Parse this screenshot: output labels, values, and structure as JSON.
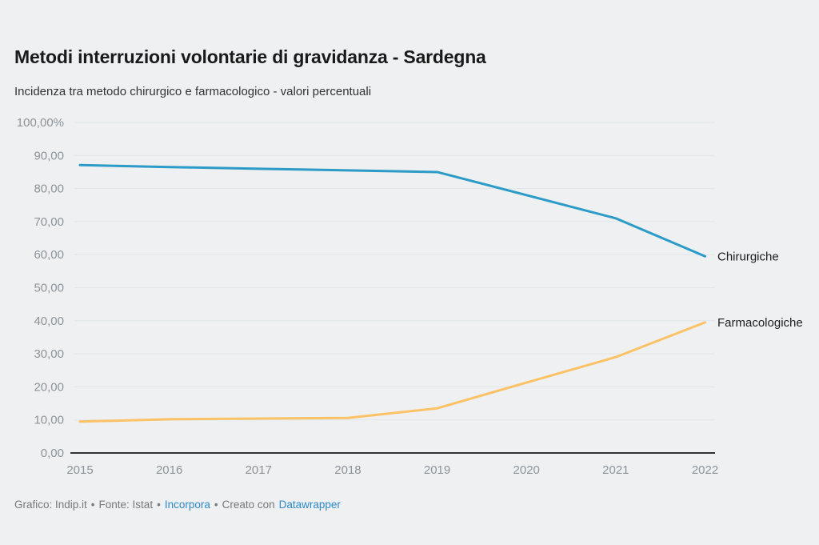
{
  "header": {
    "title": "Metodi interruzioni volontarie di gravidanza - Sardegna",
    "subtitle": "Incidenza tra metodo chirurgico e farmacologico - valori percentuali"
  },
  "footer": {
    "byline": "Grafico: Indip.it",
    "separator": "•",
    "source": "Fonte: Istat",
    "embed_link": "Incorpora",
    "created_with": "Creato con",
    "tool_link": "Datawrapper"
  },
  "colors": {
    "background": "#eef0f1",
    "title_text": "#1a1a1a",
    "subtitle_text": "#333333",
    "axis_text": "#8d9398",
    "gridline": "#e2e6e7",
    "baseline": "#303436",
    "series_label_text": "#1c1c1c",
    "footer_text": "#75797c",
    "link": "#2e8ac8",
    "chirurgiche": "#2d9bc7",
    "farmacologiche": "#fcc266"
  },
  "chart_data": {
    "type": "line",
    "title": "Metodi interruzioni volontarie di gravidanza - Sardegna",
    "subtitle": "Incidenza tra metodo chirurgico e farmacologico - valori percentuali",
    "xlabel": "",
    "ylabel": "",
    "ylim": [
      0,
      100
    ],
    "grid": true,
    "legend_position": "end-of-line-labels",
    "x": [
      2015,
      2016,
      2017,
      2018,
      2019,
      2020,
      2021,
      2022
    ],
    "x_labels": [
      "2015",
      "2016",
      "2017",
      "2018",
      "2019",
      "2020",
      "2021",
      "2022"
    ],
    "yticks": [
      {
        "v": 100,
        "label": "100,00%"
      },
      {
        "v": 90,
        "label": "90,00"
      },
      {
        "v": 80,
        "label": "80,00"
      },
      {
        "v": 70,
        "label": "70,00"
      },
      {
        "v": 60,
        "label": "60,00"
      },
      {
        "v": 50,
        "label": "50,00"
      },
      {
        "v": 40,
        "label": "40,00"
      },
      {
        "v": 30,
        "label": "30,00"
      },
      {
        "v": 20,
        "label": "20,00"
      },
      {
        "v": 10,
        "label": "10,00"
      },
      {
        "v": 0,
        "label": "0,00"
      }
    ],
    "series": [
      {
        "name": "Chirurgiche",
        "color": "#2d9bc7",
        "values": [
          87.1,
          86.5,
          86.0,
          85.5,
          85.0,
          78.0,
          71.0,
          59.5
        ]
      },
      {
        "name": "Farmacologiche",
        "color": "#fcc266",
        "values": [
          9.5,
          10.2,
          10.4,
          10.6,
          13.5,
          21.3,
          29.0,
          39.5
        ]
      }
    ]
  }
}
